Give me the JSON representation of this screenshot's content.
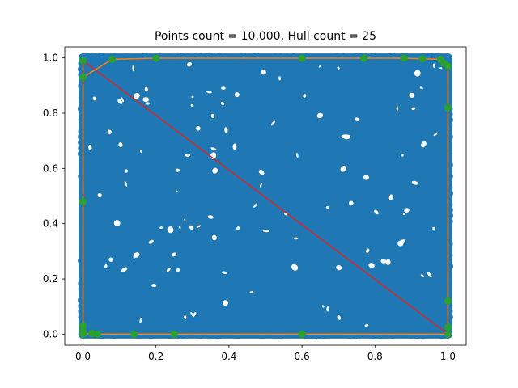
{
  "chart_data": {
    "type": "scatter",
    "title": "Points count = 10,000, Hull count = 25",
    "xlabel": "",
    "ylabel": "",
    "xlim": [
      -0.05,
      1.05
    ],
    "ylim": [
      -0.04,
      1.04
    ],
    "x_ticks": [
      0.0,
      0.2,
      0.4,
      0.6,
      0.8,
      1.0
    ],
    "x_tick_labels": [
      "0.0",
      "0.2",
      "0.4",
      "0.6",
      "0.8",
      "1.0"
    ],
    "y_ticks": [
      0.0,
      0.2,
      0.4,
      0.6,
      0.8,
      1.0
    ],
    "y_tick_labels": [
      "0.0",
      "0.2",
      "0.4",
      "0.6",
      "0.8",
      "1.0"
    ],
    "grid": false,
    "colors": {
      "points": "#1f77b4",
      "hull": "#ff7f0e",
      "hull_points": "#2ca02c",
      "diagonal": "#d62728"
    },
    "series": [
      {
        "name": "points",
        "kind": "scatter-fill",
        "count": 10000,
        "x_range": [
          0.0,
          1.0
        ],
        "y_range": [
          0.0,
          1.0
        ]
      },
      {
        "name": "hull",
        "kind": "line",
        "x": [
          0.0,
          0.0,
          0.0,
          0.0,
          0.0,
          0.08,
          0.2,
          0.6,
          0.77,
          0.88,
          0.93,
          0.98,
          0.99,
          1.0,
          1.0,
          1.0,
          1.0,
          1.0,
          0.6,
          0.25,
          0.14,
          0.04,
          0.02,
          0.0,
          0.0
        ],
        "y": [
          0.0,
          0.01,
          0.03,
          0.48,
          0.93,
          0.995,
          0.999,
          0.999,
          0.999,
          0.999,
          0.997,
          0.995,
          0.98,
          0.97,
          0.82,
          0.12,
          0.025,
          0.0,
          0.0,
          0.0,
          0.0,
          0.0,
          0.002,
          0.0,
          0.99
        ]
      },
      {
        "name": "hull points",
        "kind": "scatter",
        "x": [
          0.0,
          0.0,
          0.0,
          0.0,
          0.0,
          0.0,
          0.08,
          0.2,
          0.6,
          0.77,
          0.88,
          0.93,
          0.98,
          0.99,
          1.0,
          1.0,
          1.0,
          1.0,
          1.0,
          0.6,
          0.25,
          0.14,
          0.04,
          0.025,
          0.0
        ],
        "y": [
          0.0,
          0.01,
          0.03,
          0.48,
          0.93,
          0.99,
          0.995,
          0.999,
          0.999,
          0.999,
          0.999,
          0.997,
          0.995,
          0.98,
          0.97,
          0.82,
          0.12,
          0.025,
          0.0,
          0.0,
          0.0,
          0.0,
          0.0,
          0.002,
          0.005
        ]
      },
      {
        "name": "diagonal",
        "kind": "line",
        "x": [
          0.0,
          1.0
        ],
        "y": [
          0.99,
          0.0
        ]
      }
    ]
  }
}
